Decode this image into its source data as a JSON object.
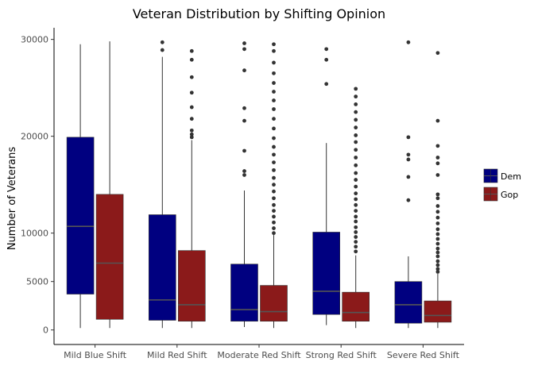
{
  "chart_data": {
    "type": "boxplot",
    "title": "Veteran Distribution by Shifting Opinion",
    "xlabel": "",
    "ylabel": "Number of Veterans",
    "ylim": [
      -1500,
      31200
    ],
    "yticks": [
      0,
      5000,
      10000,
      20000,
      30000
    ],
    "grid": false,
    "legend_position": "right",
    "categories": [
      "Mild Blue Shift",
      "Mild Red Shift",
      "Moderate Red Shift",
      "Strong Red Shift",
      "Severe Red Shift"
    ],
    "series": [
      {
        "name": "Dem",
        "color": "#000080",
        "boxes": [
          {
            "low": 200,
            "q1": 3700,
            "median": 10700,
            "q3": 19900,
            "high": 29500,
            "outliers": []
          },
          {
            "low": 200,
            "q1": 1000,
            "median": 3100,
            "q3": 11900,
            "high": 28200,
            "outliers": [
              29700,
              28900
            ]
          },
          {
            "low": 300,
            "q1": 900,
            "median": 2100,
            "q3": 6800,
            "high": 14400,
            "outliers": [
              29600,
              29000,
              26800,
              22900,
              21600,
              18500,
              16400,
              16000
            ]
          },
          {
            "low": 500,
            "q1": 1600,
            "median": 4000,
            "q3": 10100,
            "high": 19300,
            "outliers": [
              29000,
              27900,
              25400
            ]
          },
          {
            "low": 200,
            "q1": 700,
            "median": 2600,
            "q3": 5000,
            "high": 7600,
            "outliers": [
              29700,
              19900,
              18100,
              17600,
              15800,
              13400
            ]
          }
        ]
      },
      {
        "name": "Gop",
        "color": "#8b1a1a",
        "boxes": [
          {
            "low": 200,
            "q1": 1100,
            "median": 6900,
            "q3": 14000,
            "high": 29800,
            "outliers": []
          },
          {
            "low": 200,
            "q1": 900,
            "median": 2600,
            "q3": 8200,
            "high": 19600,
            "outliers": [
              28800,
              27900,
              26100,
              24500,
              23000,
              21800,
              20600,
              20200,
              19900
            ]
          },
          {
            "low": 200,
            "q1": 900,
            "median": 1900,
            "q3": 4600,
            "high": 9800,
            "outliers": [
              29500,
              28800,
              27600,
              26500,
              25500,
              24600,
              23700,
              22800,
              21800,
              20800,
              19800,
              18900,
              18100,
              17300,
              16500,
              15700,
              15000,
              14300,
              13600,
              12900,
              12300,
              11700,
              11100,
              10500,
              10000
            ]
          },
          {
            "low": 200,
            "q1": 900,
            "median": 1800,
            "q3": 3900,
            "high": 7700,
            "outliers": [
              24900,
              24100,
              23300,
              22500,
              21700,
              20900,
              20100,
              19400,
              18600,
              17800,
              17000,
              16200,
              15500,
              14800,
              14100,
              13500,
              12900,
              12300,
              11700,
              11200,
              10600,
              10100,
              9600,
              9100,
              8600,
              8100
            ]
          },
          {
            "low": 200,
            "q1": 800,
            "median": 1500,
            "q3": 3000,
            "high": 5800,
            "outliers": [
              28600,
              21600,
              19000,
              17800,
              17200,
              16000,
              14000,
              13600,
              12800,
              12200,
              11600,
              11000,
              10400,
              9900,
              9400,
              8900,
              8400,
              8000,
              7600,
              7100,
              6700,
              6300,
              6000
            ]
          }
        ]
      }
    ]
  }
}
